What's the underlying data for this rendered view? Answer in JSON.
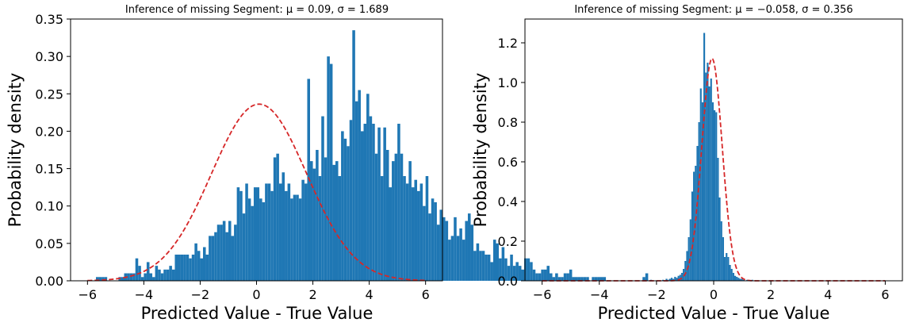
{
  "chart_data": [
    {
      "type": "bar",
      "title": "Inference of missing Segment: μ = 0.09, σ = 1.689",
      "xlabel": "Predicted Value - True Value",
      "ylabel": "Probability density",
      "xlim": [
        -6.6,
        6.6
      ],
      "ylim": [
        0,
        0.35
      ],
      "xticks": [
        -6,
        -4,
        -2,
        0,
        2,
        4,
        6
      ],
      "xtick_labels": [
        "−6",
        "−4",
        "−2",
        "0",
        "2",
        "4",
        "6"
      ],
      "yticks": [
        0,
        0.05,
        0.1,
        0.15,
        0.2,
        0.25,
        0.3,
        0.35
      ],
      "ytick_labels": [
        "0.00",
        "0.05",
        "0.10",
        "0.15",
        "0.20",
        "0.25",
        "0.30",
        "0.35"
      ],
      "bin_start": -6,
      "bin_width": 0.1,
      "values": [
        0,
        0,
        0,
        0.005,
        0.005,
        0.005,
        0.005,
        0,
        0,
        0,
        0,
        0.005,
        0.005,
        0.01,
        0.01,
        0.01,
        0.01,
        0.03,
        0.02,
        0.005,
        0.01,
        0.025,
        0.01,
        0.005,
        0.02,
        0.015,
        0.01,
        0.015,
        0.015,
        0.02,
        0.015,
        0.035,
        0.035,
        0.035,
        0.035,
        0.035,
        0.03,
        0.035,
        0.05,
        0.04,
        0.03,
        0.045,
        0.035,
        0.06,
        0.06,
        0.065,
        0.075,
        0.075,
        0.08,
        0.065,
        0.08,
        0.06,
        0.075,
        0.125,
        0.12,
        0.09,
        0.13,
        0.11,
        0.1,
        0.125,
        0.125,
        0.11,
        0.105,
        0.13,
        0.13,
        0.12,
        0.165,
        0.17,
        0.13,
        0.145,
        0.12,
        0.13,
        0.11,
        0.115,
        0.115,
        0.11,
        0.135,
        0.13,
        0.27,
        0.16,
        0.15,
        0.175,
        0.14,
        0.22,
        0.165,
        0.3,
        0.29,
        0.155,
        0.16,
        0.14,
        0.2,
        0.19,
        0.18,
        0.215,
        0.335,
        0.24,
        0.255,
        0.2,
        0.21,
        0.25,
        0.22,
        0.21,
        0.17,
        0.205,
        0.14,
        0.205,
        0.175,
        0.125,
        0.16,
        0.17,
        0.21,
        0.17,
        0.14,
        0.13,
        0.16,
        0.125,
        0.135,
        0.12,
        0.13,
        0.1,
        0.14,
        0.09,
        0.11,
        0.105,
        0.075,
        0.095,
        0.085,
        0.08,
        0.055,
        0.06,
        0.085,
        0.06,
        0.07,
        0.055,
        0.08,
        0.09,
        0.075,
        0.04,
        0.05,
        0.04,
        0.04,
        0.035,
        0.035,
        0.025,
        0.055,
        0.05,
        0.03,
        0.045,
        0.03,
        0.02,
        0.035,
        0.02,
        0.025,
        0.02,
        0.015,
        0.03,
        0.03,
        0.025,
        0.015,
        0.01,
        0.01,
        0.015,
        0.015,
        0.02,
        0.01,
        0.005,
        0.01,
        0.005,
        0.005,
        0.01,
        0.01,
        0.015,
        0.005,
        0.005,
        0.005,
        0.005,
        0.005,
        0.005,
        0,
        0.005,
        0.005,
        0.005,
        0.005,
        0.005,
        0,
        0,
        0,
        0,
        0,
        0,
        0,
        0,
        0,
        0,
        0,
        0,
        0,
        0.005,
        0.01
      ],
      "fit": {
        "mu": 0.09,
        "sigma": 1.689,
        "color": "#d62728"
      },
      "bar_color": "#1f77b4"
    },
    {
      "type": "bar",
      "title": "Inference of missing Segment: μ = −0.058, σ = 0.356",
      "xlabel": "Predicted Value - True Value",
      "ylabel": "Probability density",
      "xlim": [
        -6.6,
        6.6
      ],
      "ylim": [
        0,
        1.32
      ],
      "xticks": [
        -6,
        -4,
        -2,
        0,
        2,
        4,
        6
      ],
      "xtick_labels": [
        "−6",
        "−4",
        "−2",
        "0",
        "2",
        "4",
        "6"
      ],
      "yticks": [
        0,
        0.2,
        0.4,
        0.6,
        0.8,
        1.0,
        1.2
      ],
      "ytick_labels": [
        "0.0",
        "0.2",
        "0.4",
        "0.6",
        "0.8",
        "1.0",
        "1.2"
      ],
      "bin_start": -2.4,
      "bin_width": 0.06,
      "values": [
        0.005,
        0,
        0,
        0.005,
        0,
        0,
        0,
        0,
        0,
        0,
        0.005,
        0,
        0.01,
        0.005,
        0.01,
        0.015,
        0.01,
        0.02,
        0.015,
        0.025,
        0.03,
        0.04,
        0.06,
        0.1,
        0.15,
        0.22,
        0.31,
        0.45,
        0.55,
        0.58,
        0.68,
        0.8,
        0.97,
        0.9,
        1.25,
        1.05,
        1.1,
        0.98,
        1.02,
        0.9,
        0.86,
        0.85,
        0.62,
        0.42,
        0.3,
        0.22,
        0.12,
        0.14,
        0.12,
        0.08,
        0.06,
        0.04,
        0.025,
        0.02,
        0.015,
        0.01,
        0.01,
        0.005,
        0,
        0.005,
        0,
        0,
        0.005
      ],
      "fit": {
        "mu": -0.058,
        "sigma": 0.356,
        "color": "#d62728"
      },
      "bar_color": "#1f77b4"
    }
  ]
}
